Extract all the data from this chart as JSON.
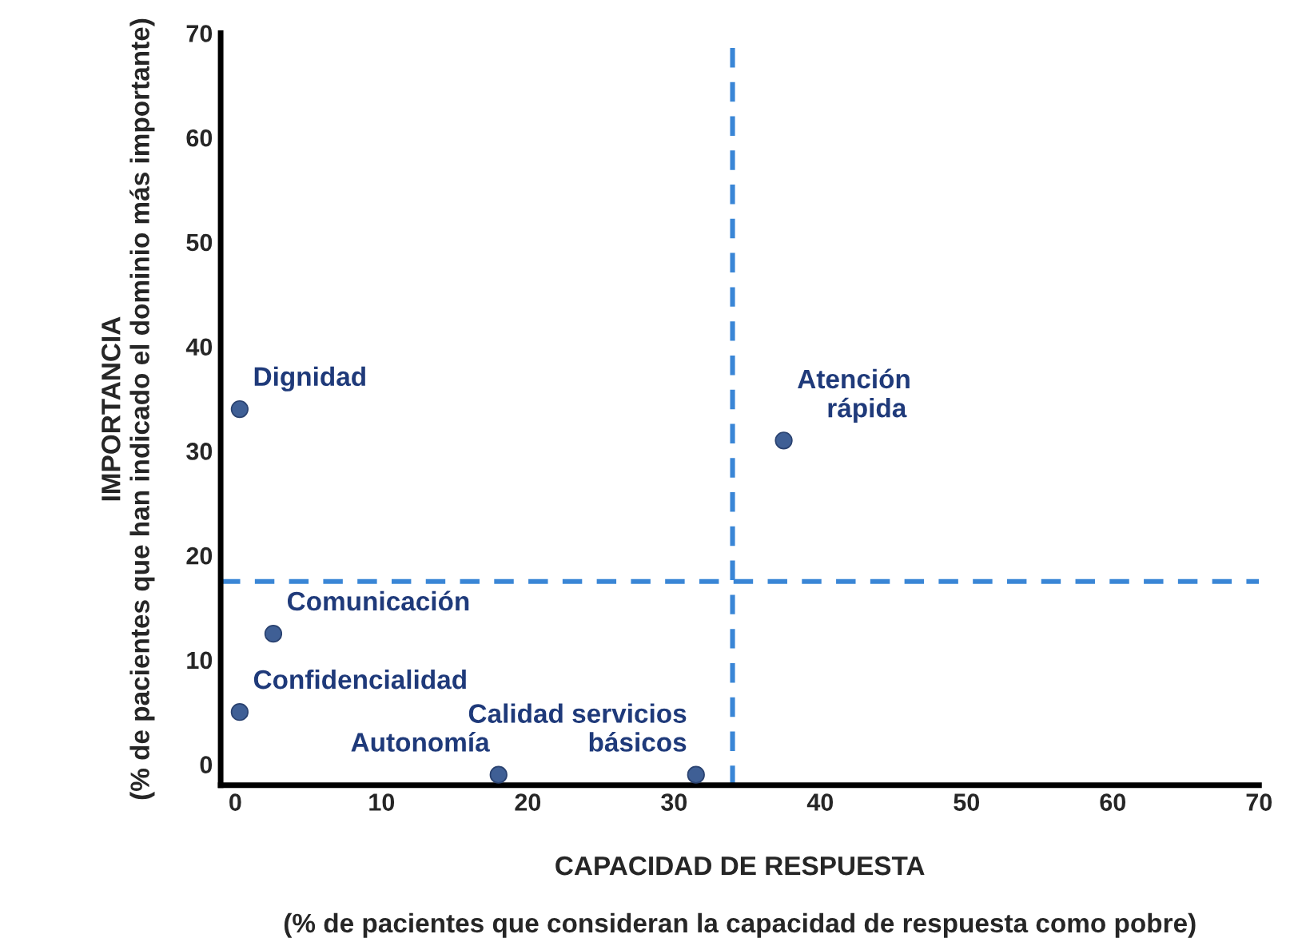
{
  "chart_data": {
    "type": "scatter",
    "xlabel": "CAPACIDAD DE RESPUESTA\n\n(% de pacientes que consideran la capacidad de respuesta como pobre)",
    "ylabel": "IMPORTANCIA\n(% de pacientes que han indicado el dominio más importante)",
    "series": [
      {
        "color": "#3f5f95",
        "x": [
          0.3,
          37.5,
          2.6,
          0.3,
          18,
          31.5
        ],
        "values": [
          34,
          31,
          12.5,
          5,
          -1,
          -1
        ]
      }
    ],
    "annotations": [
      {
        "text": "Dignidad",
        "x": 0.3,
        "y": 34
      },
      {
        "text": "Atención\n    rápida",
        "x": 37.5,
        "y": 31
      },
      {
        "text": "Comunicación",
        "x": 2.6,
        "y": 12.5
      },
      {
        "text": "Confidencialidad",
        "x": 0.3,
        "y": 5
      },
      {
        "text": "Autonomía",
        "x": 18,
        "y": -1
      },
      {
        "text": "Calidad servicios\n        básicos",
        "x": 31.5,
        "y": -1
      }
    ],
    "ref_lines": [
      {
        "axis": "x",
        "value": 34,
        "color": "#3a86d6",
        "line_style": "dashed"
      },
      {
        "axis": "y",
        "value": 17.5,
        "color": "#3a86d6",
        "line_style": "dashed"
      }
    ],
    "xlim": [
      -1,
      70
    ],
    "ylim": [
      -2,
      70
    ],
    "xticks": [
      0,
      10,
      20,
      30,
      40,
      50,
      60,
      70
    ],
    "yticks": [
      0,
      10,
      20,
      30,
      40,
      50,
      60,
      70
    ],
    "grid": false,
    "marker": "circle"
  }
}
